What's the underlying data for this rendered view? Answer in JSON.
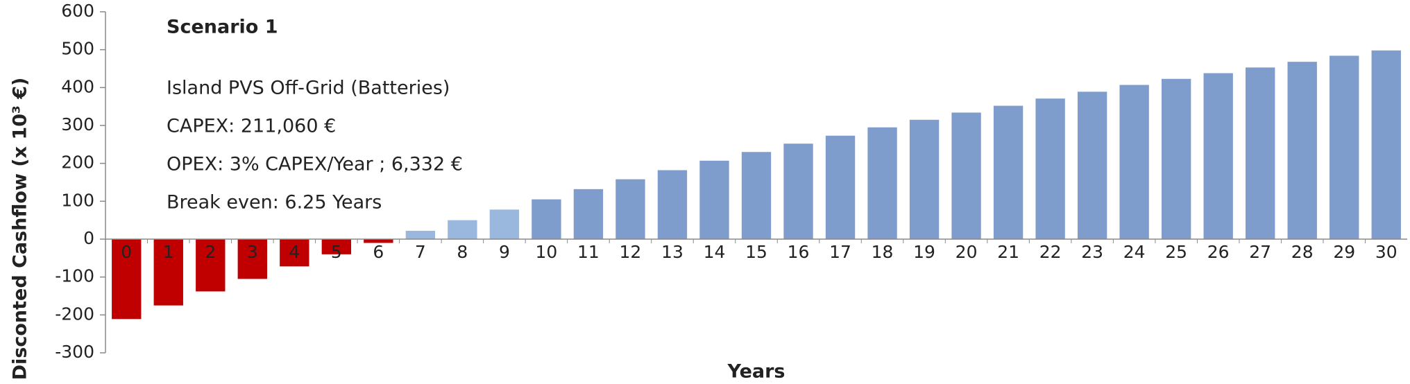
{
  "chart_data": {
    "type": "bar",
    "y_label": "Disconted Cashflow (x 10³ €)",
    "x_label": "Years",
    "annotation_title": "Scenario 1",
    "annotations": [
      "Island PVS Off-Grid (Batteries)",
      "CAPEX: 211,060 €",
      "OPEX: 3% CAPEX/Year ; 6,332 €",
      "Break even:  6.25 Years"
    ],
    "categories": [
      "0",
      "1",
      "2",
      "3",
      "4",
      "5",
      "6",
      "7",
      "8",
      "9",
      "10",
      "11",
      "12",
      "13",
      "14",
      "15",
      "16",
      "17",
      "18",
      "19",
      "20",
      "21",
      "22",
      "23",
      "24",
      "25",
      "26",
      "27",
      "28",
      "29",
      "30"
    ],
    "values": [
      -211,
      -175,
      -138,
      -105,
      -72,
      -40,
      -10,
      22,
      50,
      78,
      105,
      132,
      158,
      182,
      207,
      230,
      252,
      273,
      295,
      315,
      334,
      352,
      371,
      389,
      407,
      423,
      438,
      453,
      468,
      484,
      498
    ],
    "colors": [
      "#c00000",
      "#c00000",
      "#c00000",
      "#c00000",
      "#c00000",
      "#c00000",
      "#c00000",
      "#9ab8de",
      "#9ab8de",
      "#9ab8de",
      "#7f9dcc",
      "#7f9dcc",
      "#7f9dcc",
      "#7f9dcc",
      "#7f9dcc",
      "#7f9dcc",
      "#7f9dcc",
      "#7f9dcc",
      "#7f9dcc",
      "#7f9dcc",
      "#7f9dcc",
      "#7f9dcc",
      "#7f9dcc",
      "#7f9dcc",
      "#7f9dcc",
      "#7f9dcc",
      "#7f9dcc",
      "#7f9dcc",
      "#7f9dcc",
      "#7f9dcc",
      "#7f9dcc"
    ],
    "ylim": [
      -300,
      600
    ],
    "yticks": [
      -300,
      -200,
      -100,
      0,
      100,
      200,
      300,
      400,
      500,
      600
    ]
  }
}
